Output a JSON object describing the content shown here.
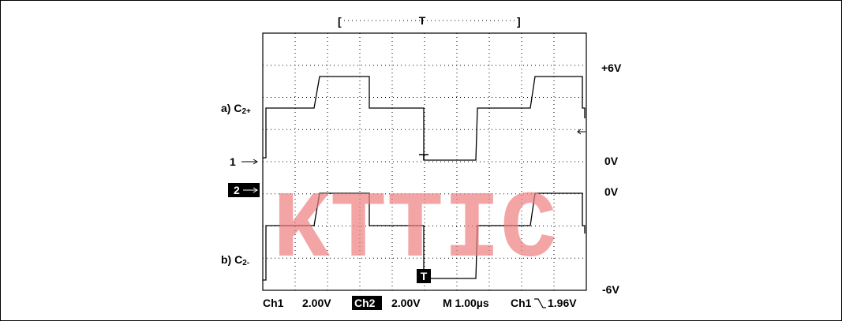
{
  "scope": {
    "top_marker": "T",
    "right_labels": [
      "+6V",
      "0V",
      "0V",
      "-6V"
    ],
    "signal_a": {
      "prefix": "a) C",
      "sub": "2+"
    },
    "signal_b": {
      "prefix": "b) C",
      "sub": "2-"
    },
    "channel_markers": [
      "1",
      "2"
    ],
    "trigger_marker": "T",
    "status": {
      "ch1": "Ch1",
      "ch1_scale": "2.00V",
      "ch2": "Ch2",
      "ch2_scale": "2.00V",
      "time": "M 1.00µs",
      "trig_source": "Ch1",
      "trig_level": "1.96V"
    },
    "watermark": "KTTIC"
  }
}
